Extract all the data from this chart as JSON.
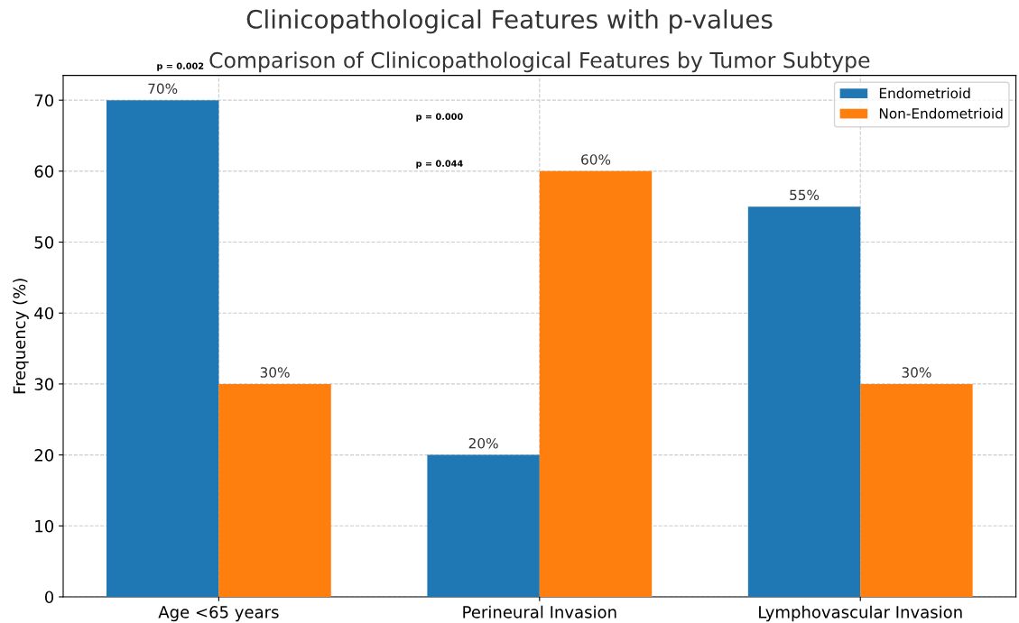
{
  "chart_data": {
    "type": "bar",
    "title": "Clinicopathological Features with p-values",
    "subtitle": "Comparison of Clinicopathological Features by Tumor Subtype",
    "ylabel": "Frequency (%)",
    "categories": [
      "Age <65 years",
      "Perineural Invasion",
      "Lymphovascular Invasion"
    ],
    "series": [
      {
        "name": "Endometrioid",
        "color": "#1f77b4",
        "values": [
          70,
          20,
          55
        ],
        "value_labels": [
          "70%",
          "20%",
          "55%"
        ]
      },
      {
        "name": "Non-Endometrioid",
        "color": "#ff7f0e",
        "values": [
          30,
          60,
          30
        ],
        "value_labels": [
          "30%",
          "60%",
          "30%"
        ]
      }
    ],
    "ylim": [
      0,
      73.5
    ],
    "yticks": [
      0,
      10,
      20,
      30,
      40,
      50,
      60,
      70
    ],
    "grid": true,
    "legend": "top right",
    "annotations": [
      "p = 0.002",
      "p = 0.000",
      "p = 0.044"
    ]
  }
}
